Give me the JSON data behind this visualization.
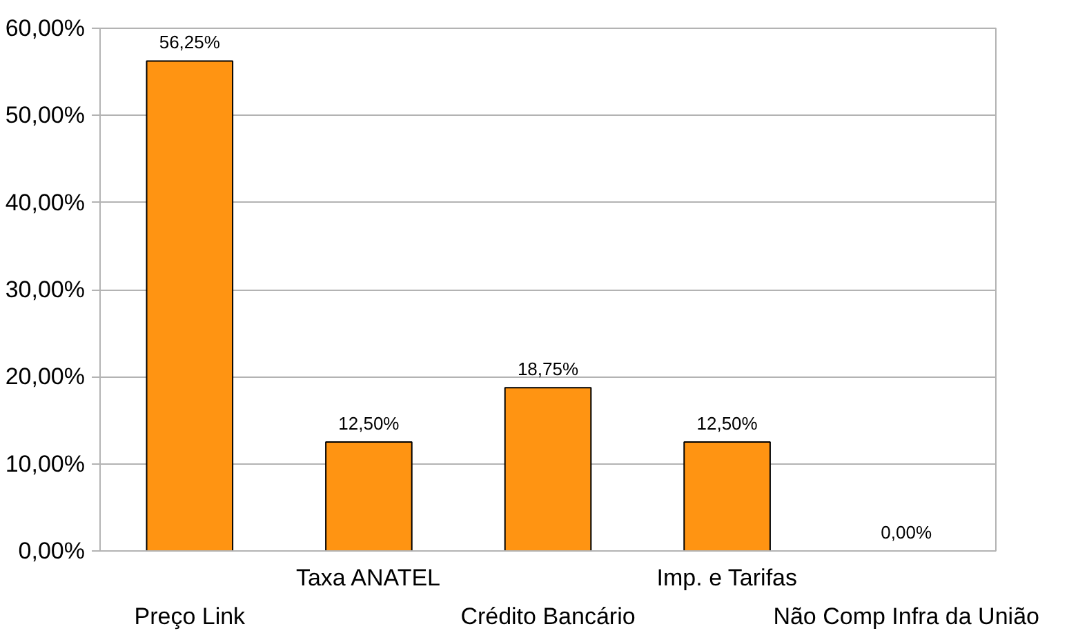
{
  "chart_data": {
    "type": "bar",
    "categories": [
      "Preço Link",
      "Taxa ANATEL",
      "Crédito Bancário",
      "Imp. e Tarifas",
      "Não Comp Infra da União"
    ],
    "values": [
      56.25,
      12.5,
      18.75,
      12.5,
      0
    ],
    "value_labels": [
      "56,25%",
      "12,50%",
      "18,75%",
      "12,50%",
      "0,00%"
    ],
    "color": "#ff9412",
    "ylim": [
      0,
      60
    ],
    "yticks": [
      {
        "value": 0,
        "label": "0,00%"
      },
      {
        "value": 10,
        "label": "10,00%"
      },
      {
        "value": 20,
        "label": "20,00%"
      },
      {
        "value": 30,
        "label": "30,00%"
      },
      {
        "value": 40,
        "label": "40,00%"
      },
      {
        "value": 50,
        "label": "50,00%"
      },
      {
        "value": 60,
        "label": "60,00%"
      }
    ],
    "grid": "y"
  }
}
